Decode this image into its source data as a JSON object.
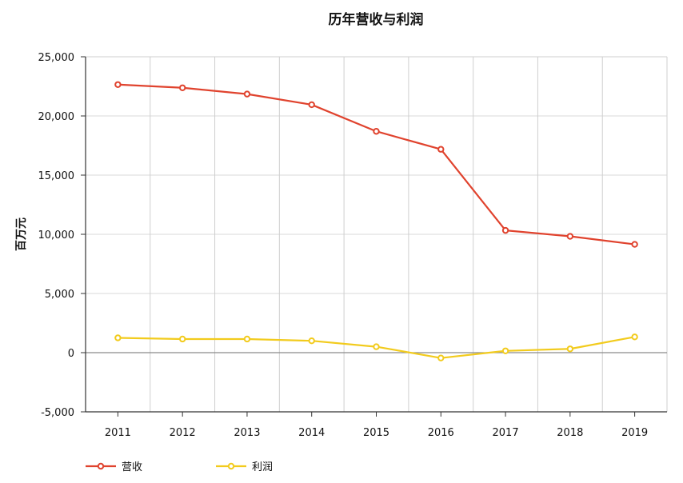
{
  "chart_data": {
    "type": "line",
    "title": "历年营收与利润",
    "ylabel": "百万元",
    "xlabel": "",
    "categories": [
      "2011",
      "2012",
      "2013",
      "2014",
      "2015",
      "2016",
      "2017",
      "2018",
      "2019"
    ],
    "ylim": [
      -5000,
      25000
    ],
    "yticks": [
      -5000,
      0,
      5000,
      10000,
      15000,
      20000,
      25000
    ],
    "ytick_labels": [
      "-5,000",
      "0",
      "5,000",
      "10,000",
      "15,000",
      "20,000",
      "25,000"
    ],
    "grid": true,
    "legend_position": "bottom-left",
    "series": [
      {
        "name": "营收",
        "color": "#e0432e",
        "values": [
          22650,
          22380,
          21850,
          20950,
          18700,
          17180,
          10330,
          9830,
          9150
        ]
      },
      {
        "name": "利润",
        "color": "#f2cb1d",
        "values": [
          1250,
          1150,
          1150,
          1000,
          500,
          -450,
          150,
          320,
          1330
        ]
      }
    ]
  }
}
